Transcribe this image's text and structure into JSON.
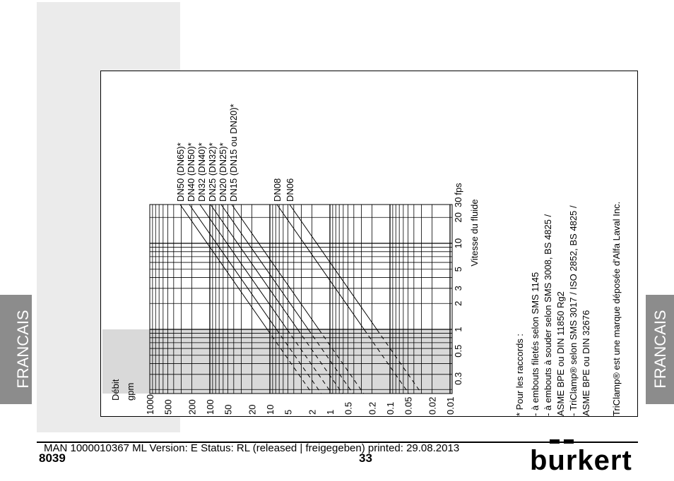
{
  "tabs": [
    "FRANCAIS",
    "FRANCAIS"
  ],
  "diagram": {
    "flow_title": "Débit",
    "flow_unit": "gpm",
    "flow_ticks": [
      "1000",
      "500",
      "200",
      "100",
      "50",
      "20",
      "10",
      "5",
      "2",
      "1",
      "0.5",
      "0.2",
      "0.1",
      "0.05",
      "0.02",
      "0.01"
    ],
    "velocity_ticks": [
      "0.3",
      "0.5",
      "1",
      "2",
      "3",
      "5",
      "10",
      "20",
      "30"
    ],
    "velocity_unit": "fps",
    "velocity_title": "Vitesse du fluide",
    "pipes": [
      "DN50 (DN65)*",
      "DN40 (DN50)*",
      "DN32 (DN40)*",
      "DN25 (DN32)*",
      "DN20 (DN25)*",
      "DN15 (DN15 ou DN20)*",
      "DN08",
      "DN06"
    ],
    "notes": [
      "* Pour les raccords :",
      "- à embouts filetés selon SMS 1145",
      "- à embouts à souder selon SMS 3008, BS 4825 /",
      "ASME BPE ou DIN 11850 Rg2",
      "- TriClamp® selon SMS 3017 / ISO 2852, BS 4825 /",
      "ASME BPE ou DIN 32676"
    ],
    "trademark": "TriClamp® est une marque déposée d'Alfa Laval Inc."
  },
  "footer": {
    "meta": "MAN  1000010367  ML  Version: E Status: RL (released | freigegeben)  printed: 29.08.2013",
    "doc_number": "8039",
    "page": "33",
    "logo": "burkert"
  }
}
